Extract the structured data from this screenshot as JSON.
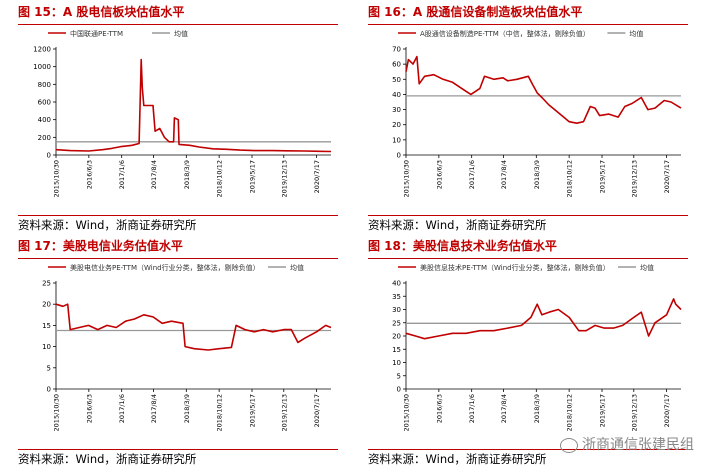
{
  "panels": [
    {
      "title": "图 15：A 股电信板块估值水平",
      "source": "资料来源：Wind，浙商证券研究所",
      "chart_data": {
        "type": "line",
        "legend_position": "top-left",
        "grid": false,
        "ylim": [
          0,
          1200
        ],
        "yticks": [
          0,
          200,
          400,
          600,
          800,
          1000,
          1200
        ],
        "xlim": [
          "2015-10-30",
          "2020-10-20"
        ],
        "xticks": [
          "2015/10/30",
          "2016/6/3",
          "2017/1/6",
          "2017/8/4",
          "2018/3/9",
          "2018/10/12",
          "2019/5/17",
          "2019/12/13",
          "2020/7/17"
        ],
        "series": [
          {
            "name": "中国联通PE-TTM",
            "color": "#c00000",
            "points": [
              [
                "2015-10-30",
                60
              ],
              [
                "2016-02-01",
                50
              ],
              [
                "2016-06-01",
                45
              ],
              [
                "2016-09-01",
                60
              ],
              [
                "2016-11-01",
                75
              ],
              [
                "2017-01-01",
                95
              ],
              [
                "2017-03-15",
                110
              ],
              [
                "2017-05-01",
                130
              ],
              [
                "2017-05-15",
                1080
              ],
              [
                "2017-05-22",
                760
              ],
              [
                "2017-06-01",
                560
              ],
              [
                "2017-07-01",
                560
              ],
              [
                "2017-08-01",
                560
              ],
              [
                "2017-08-15",
                270
              ],
              [
                "2017-09-15",
                300
              ],
              [
                "2017-10-15",
                200
              ],
              [
                "2017-11-15",
                150
              ],
              [
                "2017-12-15",
                150
              ],
              [
                "2017-12-20",
                420
              ],
              [
                "2018-01-15",
                400
              ],
              [
                "2018-01-20",
                120
              ],
              [
                "2018-04-01",
                110
              ],
              [
                "2018-06-01",
                90
              ],
              [
                "2018-09-01",
                70
              ],
              [
                "2018-12-01",
                65
              ],
              [
                "2019-03-01",
                55
              ],
              [
                "2019-06-01",
                50
              ],
              [
                "2019-10-01",
                50
              ],
              [
                "2020-01-01",
                48
              ],
              [
                "2020-05-01",
                45
              ],
              [
                "2020-08-01",
                42
              ],
              [
                "2020-10-20",
                40
              ]
            ]
          },
          {
            "name": "均值",
            "color": "#999999",
            "points": [
              [
                "2015-10-30",
                150
              ],
              [
                "2020-10-20",
                150
              ]
            ]
          }
        ]
      }
    },
    {
      "title": "图 16：A 股通信设备制造板块估值水平",
      "source": "资料来源：Wind，浙商证券研究所",
      "chart_data": {
        "type": "line",
        "legend_position": "top-left",
        "grid": false,
        "ylim": [
          0,
          70
        ],
        "yticks": [
          0,
          10,
          20,
          30,
          40,
          50,
          60,
          70
        ],
        "xlim": [
          "2015-10-30",
          "2020-10-20"
        ],
        "xticks": [
          "2015/10/30",
          "2016/6/3",
          "2017/1/6",
          "2017/8/4",
          "2018/3/9",
          "2018/10/12",
          "2019/5/17",
          "2019/12/13",
          "2020/7/17"
        ],
        "series": [
          {
            "name": "A股通信设备制造PE-TTM（中信，整体法，剔除负值）",
            "color": "#c00000",
            "points": [
              [
                "2015-10-30",
                55
              ],
              [
                "2015-11-15",
                63
              ],
              [
                "2015-12-15",
                60
              ],
              [
                "2016-01-10",
                65
              ],
              [
                "2016-01-25",
                47
              ],
              [
                "2016-03-01",
                52
              ],
              [
                "2016-05-01",
                53
              ],
              [
                "2016-07-01",
                50
              ],
              [
                "2016-09-01",
                48
              ],
              [
                "2016-11-01",
                44
              ],
              [
                "2016-12-01",
                42
              ],
              [
                "2017-01-01",
                40
              ],
              [
                "2017-03-01",
                44
              ],
              [
                "2017-04-01",
                52
              ],
              [
                "2017-06-01",
                50
              ],
              [
                "2017-08-01",
                51
              ],
              [
                "2017-09-01",
                49
              ],
              [
                "2017-11-01",
                50
              ],
              [
                "2018-01-15",
                52
              ],
              [
                "2018-02-15",
                46
              ],
              [
                "2018-03-15",
                41
              ],
              [
                "2018-04-15",
                38
              ],
              [
                "2018-06-01",
                33
              ],
              [
                "2018-08-01",
                28
              ],
              [
                "2018-10-12",
                22
              ],
              [
                "2018-12-01",
                21
              ],
              [
                "2019-01-15",
                22
              ],
              [
                "2019-03-01",
                32
              ],
              [
                "2019-04-01",
                31
              ],
              [
                "2019-05-01",
                26
              ],
              [
                "2019-07-01",
                27
              ],
              [
                "2019-09-01",
                25
              ],
              [
                "2019-10-15",
                32
              ],
              [
                "2019-12-01",
                34
              ],
              [
                "2020-02-01",
                38
              ],
              [
                "2020-03-15",
                30
              ],
              [
                "2020-05-01",
                31
              ],
              [
                "2020-07-01",
                36
              ],
              [
                "2020-08-15",
                35
              ],
              [
                "2020-10-20",
                31
              ]
            ]
          },
          {
            "name": "均值",
            "color": "#999999",
            "points": [
              [
                "2015-10-30",
                39
              ],
              [
                "2020-10-20",
                39
              ]
            ]
          }
        ]
      }
    },
    {
      "title": "图 17：美股电信业务估值水平",
      "source": "资料来源：Wind，浙商证券研究所",
      "chart_data": {
        "type": "line",
        "legend_position": "top-left",
        "grid": false,
        "ylim": [
          0,
          25
        ],
        "yticks": [
          0,
          5,
          10,
          15,
          20,
          25
        ],
        "xlim": [
          "2015-10-30",
          "2020-10-20"
        ],
        "xticks": [
          "2015/10/30",
          "2016/6/3",
          "2017/1/6",
          "2017/8/4",
          "2018/3/9",
          "2018/10/12",
          "2019/5/17",
          "2019/12/13",
          "2020/7/17"
        ],
        "series": [
          {
            "name": "美股电信业务PE-TTM（Wind行业分类，整体法，剔除负值）",
            "color": "#c00000",
            "points": [
              [
                "2015-10-30",
                20
              ],
              [
                "2015-12-15",
                19.5
              ],
              [
                "2016-01-15",
                20
              ],
              [
                "2016-02-01",
                14
              ],
              [
                "2016-04-01",
                14.5
              ],
              [
                "2016-06-01",
                15
              ],
              [
                "2016-08-01",
                14
              ],
              [
                "2016-10-01",
                15
              ],
              [
                "2016-12-01",
                14.5
              ],
              [
                "2017-02-01",
                16
              ],
              [
                "2017-04-01",
                16.5
              ],
              [
                "2017-06-01",
                17.5
              ],
              [
                "2017-08-01",
                17
              ],
              [
                "2017-10-01",
                15.5
              ],
              [
                "2017-12-01",
                16
              ],
              [
                "2018-02-15",
                15.5
              ],
              [
                "2018-03-01",
                10
              ],
              [
                "2018-05-01",
                9.5
              ],
              [
                "2018-08-01",
                9.2
              ],
              [
                "2018-10-12",
                9.5
              ],
              [
                "2019-01-01",
                9.8
              ],
              [
                "2019-02-01",
                15
              ],
              [
                "2019-04-01",
                14
              ],
              [
                "2019-06-01",
                13.5
              ],
              [
                "2019-08-01",
                14
              ],
              [
                "2019-10-01",
                13.5
              ],
              [
                "2019-12-13",
                14
              ],
              [
                "2020-02-01",
                14
              ],
              [
                "2020-03-15",
                11
              ],
              [
                "2020-05-01",
                12
              ],
              [
                "2020-07-17",
                13.5
              ],
              [
                "2020-09-15",
                15
              ],
              [
                "2020-10-20",
                14.5
              ]
            ]
          },
          {
            "name": "均值",
            "color": "#999999",
            "points": [
              [
                "2015-10-30",
                13.8
              ],
              [
                "2020-10-20",
                13.8
              ]
            ]
          }
        ]
      }
    },
    {
      "title": "图 18：美股信息技术业务估值水平",
      "source": "资料来源：Wind，浙商证券研究所",
      "chart_data": {
        "type": "line",
        "legend_position": "top-left",
        "grid": false,
        "ylim": [
          0,
          40
        ],
        "yticks": [
          0,
          5,
          10,
          15,
          20,
          25,
          30,
          35,
          40
        ],
        "xlim": [
          "2015-10-30",
          "2020-10-20"
        ],
        "xticks": [
          "2015/10/30",
          "2016/6/3",
          "2017/1/6",
          "2017/8/4",
          "2018/3/9",
          "2018/10/12",
          "2019/5/17",
          "2019/12/13",
          "2020/7/17"
        ],
        "series": [
          {
            "name": "美股信息技术PE-TTM（Wind行业分类，整体法，剔除负值）",
            "color": "#c00000",
            "points": [
              [
                "2015-10-30",
                21
              ],
              [
                "2016-01-01",
                20
              ],
              [
                "2016-03-01",
                19
              ],
              [
                "2016-06-01",
                20
              ],
              [
                "2016-09-01",
                21
              ],
              [
                "2016-12-01",
                21
              ],
              [
                "2017-03-01",
                22
              ],
              [
                "2017-06-01",
                22
              ],
              [
                "2017-09-01",
                23
              ],
              [
                "2017-12-01",
                24
              ],
              [
                "2018-02-01",
                27
              ],
              [
                "2018-03-15",
                32
              ],
              [
                "2018-04-15",
                28
              ],
              [
                "2018-06-01",
                29
              ],
              [
                "2018-08-01",
                30
              ],
              [
                "2018-10-12",
                27
              ],
              [
                "2018-12-15",
                22
              ],
              [
                "2019-02-01",
                22
              ],
              [
                "2019-04-01",
                24
              ],
              [
                "2019-06-01",
                23
              ],
              [
                "2019-08-01",
                23
              ],
              [
                "2019-10-01",
                24
              ],
              [
                "2019-12-13",
                27
              ],
              [
                "2020-02-01",
                29
              ],
              [
                "2020-03-20",
                20
              ],
              [
                "2020-05-01",
                25
              ],
              [
                "2020-07-17",
                28
              ],
              [
                "2020-09-01",
                34
              ],
              [
                "2020-09-15",
                32
              ],
              [
                "2020-10-20",
                30
              ]
            ]
          },
          {
            "name": "均值",
            "color": "#999999",
            "points": [
              [
                "2015-10-30",
                24.8
              ],
              [
                "2020-10-20",
                24.8
              ]
            ]
          }
        ]
      }
    }
  ],
  "watermark": "浙商通信张建民组"
}
